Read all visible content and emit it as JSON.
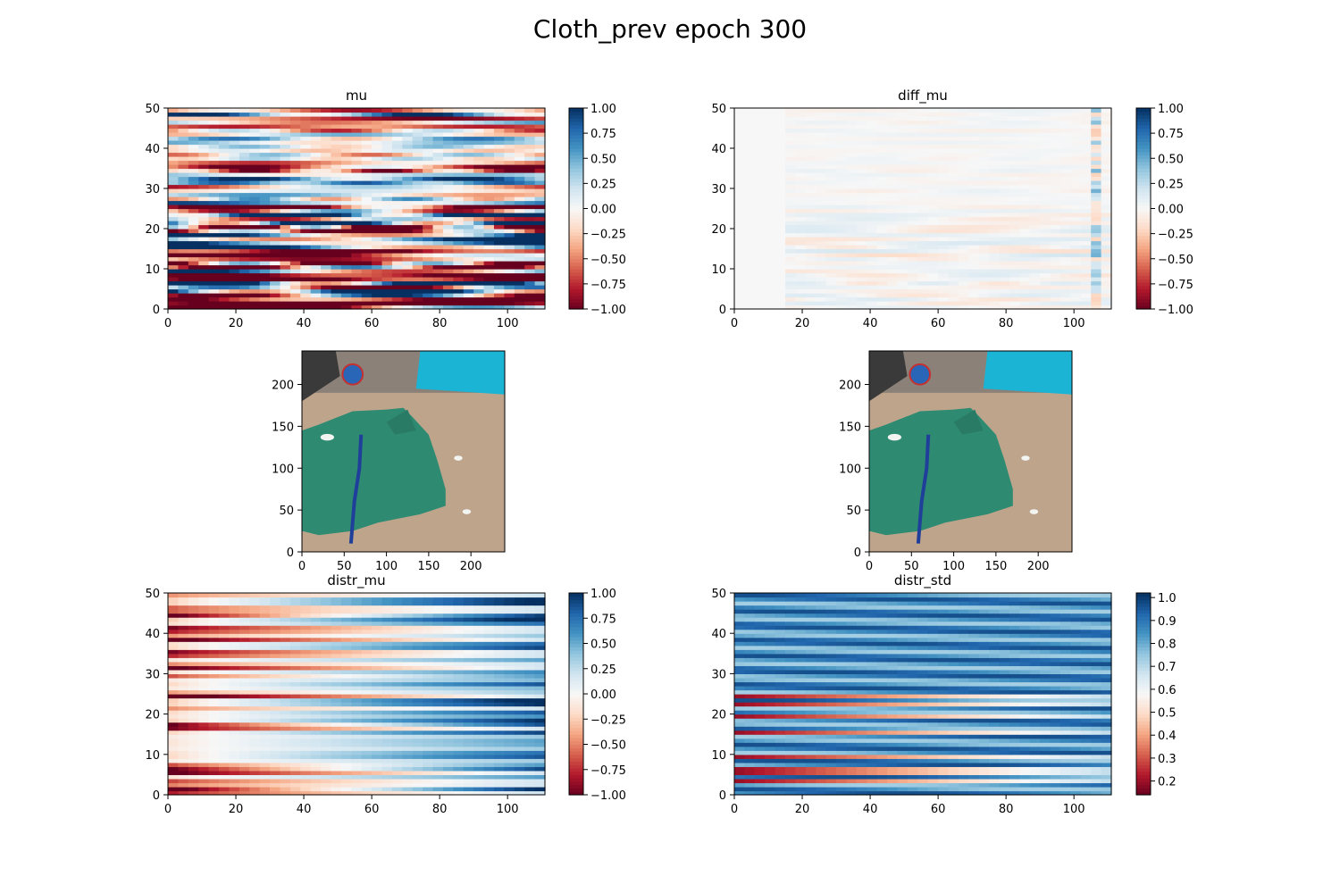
{
  "figure": {
    "suptitle": "Cloth_prev epoch 300"
  },
  "colors": {
    "colormap": "RdBu",
    "colormap_stops": [
      "#67001f",
      "#b2182b",
      "#d6604d",
      "#f4a582",
      "#fddbc7",
      "#f7f7f7",
      "#d1e5f0",
      "#92c5de",
      "#4393c3",
      "#2166ac",
      "#053061"
    ],
    "image_wall_blue": "#1bb4d4",
    "image_cardboard": "#bfa48c",
    "image_cloth": "#2f8a72",
    "image_zipper": "#1f3f9a"
  },
  "chart_data": [
    {
      "name": "mu",
      "type": "heatmap",
      "title": "mu",
      "xlim": [
        0,
        111
      ],
      "ylim": [
        0,
        50
      ],
      "xticks": [
        "0",
        "20",
        "40",
        "60",
        "80",
        "100"
      ],
      "xtick_values": [
        0,
        20,
        40,
        60,
        80,
        100
      ],
      "yticks": [
        "0",
        "10",
        "20",
        "30",
        "40",
        "50"
      ],
      "ytick_values": [
        0,
        10,
        20,
        30,
        40,
        50
      ],
      "colorbar": {
        "vmin": -1.0,
        "vmax": 1.0,
        "ticks": [
          "−1.00",
          "−0.75",
          "−0.50",
          "−0.25",
          "0.00",
          "0.25",
          "0.50",
          "0.75",
          "1.00"
        ],
        "tick_values": [
          -1.0,
          -0.75,
          -0.5,
          -0.25,
          0.0,
          0.25,
          0.5,
          0.75,
          1.0
        ]
      },
      "rows": 50,
      "cols": 111,
      "amplitude": 0.55,
      "seed": 7
    },
    {
      "name": "diff_mu",
      "type": "heatmap",
      "title": "diff_mu",
      "xlim": [
        0,
        111
      ],
      "ylim": [
        0,
        50
      ],
      "xticks": [
        "0",
        "20",
        "40",
        "60",
        "80",
        "100"
      ],
      "xtick_values": [
        0,
        20,
        40,
        60,
        80,
        100
      ],
      "yticks": [
        "0",
        "10",
        "20",
        "30",
        "40",
        "50"
      ],
      "ytick_values": [
        0,
        10,
        20,
        30,
        40,
        50
      ],
      "colorbar": {
        "vmin": -1.0,
        "vmax": 1.0,
        "ticks": [
          "−1.00",
          "−0.75",
          "−0.50",
          "−0.25",
          "0.00",
          "0.25",
          "0.50",
          "0.75",
          "1.00"
        ],
        "tick_values": [
          -1.0,
          -0.75,
          -0.5,
          -0.25,
          0.0,
          0.25,
          0.5,
          0.75,
          1.0
        ]
      },
      "rows": 50,
      "cols": 111,
      "amplitude": 0.12,
      "seed": 13
    },
    {
      "name": "image-current",
      "type": "image",
      "xlim": [
        0,
        240
      ],
      "ylim": [
        240,
        0
      ],
      "xticks": [
        "0",
        "50",
        "100",
        "150",
        "200"
      ],
      "xtick_values": [
        0,
        50,
        100,
        150,
        200
      ],
      "yticks": [
        "0",
        "50",
        "100",
        "150",
        "200"
      ],
      "ytick_values": [
        0,
        50,
        100,
        150,
        200
      ]
    },
    {
      "name": "image-predicted",
      "type": "image",
      "xlim": [
        0,
        240
      ],
      "ylim": [
        240,
        0
      ],
      "xticks": [
        "0",
        "50",
        "100",
        "150",
        "200"
      ],
      "xtick_values": [
        0,
        50,
        100,
        150,
        200
      ],
      "yticks": [
        "0",
        "50",
        "100",
        "150",
        "200"
      ],
      "ytick_values": [
        0,
        50,
        100,
        150,
        200
      ]
    },
    {
      "name": "distr_mu",
      "type": "heatmap",
      "title": "distr_mu",
      "xlim": [
        0,
        111
      ],
      "ylim": [
        0,
        50
      ],
      "xticks": [
        "0",
        "20",
        "40",
        "60",
        "80",
        "100"
      ],
      "xtick_values": [
        0,
        20,
        40,
        60,
        80,
        100
      ],
      "yticks": [
        "0",
        "10",
        "20",
        "30",
        "40",
        "50"
      ],
      "ytick_values": [
        0,
        10,
        20,
        30,
        40,
        50
      ],
      "colorbar": {
        "vmin": -1.0,
        "vmax": 1.0,
        "ticks": [
          "−1.00",
          "−0.75",
          "−0.50",
          "−0.25",
          "0.00",
          "0.25",
          "0.50",
          "0.75",
          "1.00"
        ],
        "tick_values": [
          -1.0,
          -0.75,
          -0.5,
          -0.25,
          0.0,
          0.25,
          0.5,
          0.75,
          1.0
        ]
      },
      "rows": 50,
      "cols": 111,
      "amplitude": 0.8,
      "seed": 21
    },
    {
      "name": "distr_std",
      "type": "heatmap",
      "title": "distr_std",
      "xlim": [
        0,
        111
      ],
      "ylim": [
        0,
        50
      ],
      "xticks": [
        "0",
        "20",
        "40",
        "60",
        "80",
        "100"
      ],
      "xtick_values": [
        0,
        20,
        40,
        60,
        80,
        100
      ],
      "yticks": [
        "0",
        "10",
        "20",
        "30",
        "40",
        "50"
      ],
      "ytick_values": [
        0,
        10,
        20,
        30,
        40,
        50
      ],
      "colorbar": {
        "vmin": 0.14,
        "vmax": 1.02,
        "ticks": [
          "0.2",
          "0.3",
          "0.4",
          "0.5",
          "0.6",
          "0.7",
          "0.8",
          "0.9",
          "1.0"
        ],
        "tick_values": [
          0.2,
          0.3,
          0.4,
          0.5,
          0.6,
          0.7,
          0.8,
          0.9,
          1.0
        ]
      },
      "rows": 50,
      "cols": 111,
      "seed": 33
    }
  ]
}
